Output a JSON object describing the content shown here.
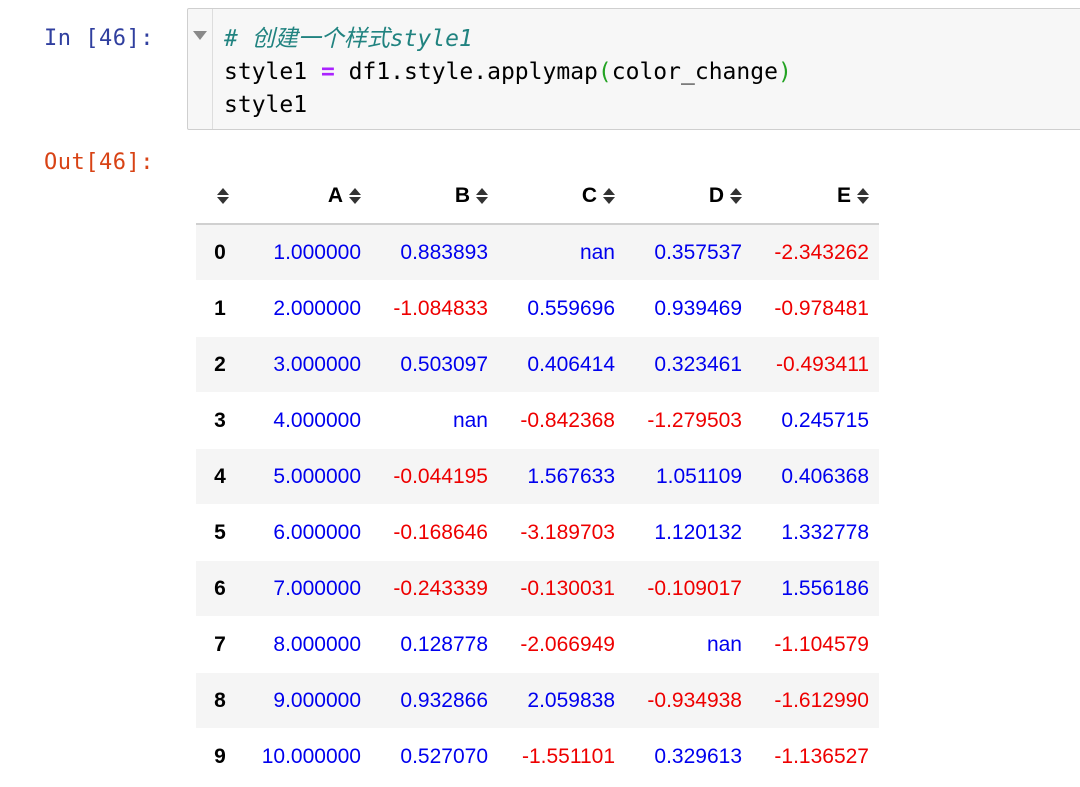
{
  "cell": {
    "in_prompt": "In [46]:",
    "out_prompt": "Out[46]:",
    "code_line1": "# 创建一个样式style1",
    "code_line2_a": "style1 ",
    "code_line2_op": "=",
    "code_line2_b": " df1.style.applymap",
    "code_line2_open": "(",
    "code_line2_c": "color_change",
    "code_line2_close": ")",
    "code_line3": "style1"
  },
  "table": {
    "columns": [
      "A",
      "B",
      "C",
      "D",
      "E"
    ],
    "rows": [
      {
        "index": "0",
        "values": [
          "1.000000",
          "0.883893",
          "nan",
          "0.357537",
          "-2.343262"
        ]
      },
      {
        "index": "1",
        "values": [
          "2.000000",
          "-1.084833",
          "0.559696",
          "0.939469",
          "-0.978481"
        ]
      },
      {
        "index": "2",
        "values": [
          "3.000000",
          "0.503097",
          "0.406414",
          "0.323461",
          "-0.493411"
        ]
      },
      {
        "index": "3",
        "values": [
          "4.000000",
          "nan",
          "-0.842368",
          "-1.279503",
          "0.245715"
        ]
      },
      {
        "index": "4",
        "values": [
          "5.000000",
          "-0.044195",
          "1.567633",
          "1.051109",
          "0.406368"
        ]
      },
      {
        "index": "5",
        "values": [
          "6.000000",
          "-0.168646",
          "-3.189703",
          "1.120132",
          "1.332778"
        ]
      },
      {
        "index": "6",
        "values": [
          "7.000000",
          "-0.243339",
          "-0.130031",
          "-0.109017",
          "1.556186"
        ]
      },
      {
        "index": "7",
        "values": [
          "8.000000",
          "0.128778",
          "-2.066949",
          "nan",
          "-1.104579"
        ]
      },
      {
        "index": "8",
        "values": [
          "9.000000",
          "0.932866",
          "2.059838",
          "-0.934938",
          "-1.612990"
        ]
      },
      {
        "index": "9",
        "values": [
          "10.000000",
          "0.527070",
          "-1.551101",
          "0.329613",
          "-1.136527"
        ]
      }
    ]
  },
  "colors": {
    "positive": "#0000ee",
    "negative": "#ee0000",
    "in_prompt": "#303f9f",
    "out_prompt": "#d84315"
  },
  "icons": {
    "sort": "sort-arrows-icon",
    "fold": "fold-arrow-icon"
  }
}
